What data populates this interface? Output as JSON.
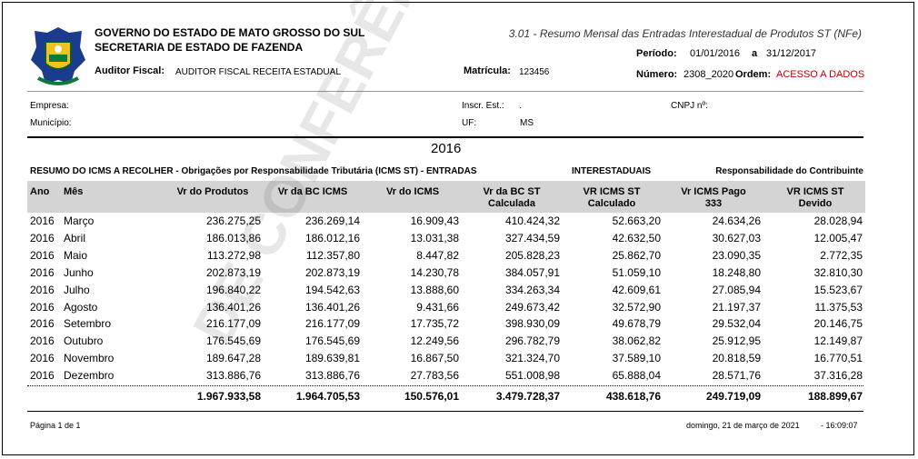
{
  "header": {
    "gov": "GOVERNO DO ESTADO DE MATO GROSSO DO SUL",
    "secretaria": "SECRETARIA DE ESTADO DE FAZENDA",
    "auditor_label": "Auditor Fiscal:",
    "auditor": "AUDITOR FISCAL RECEITA ESTADUAL",
    "matricula_label": "Matrícula:",
    "matricula": "123456",
    "report_title": "3.01 - Resumo Mensal das Entradas Interestadual de Produtos ST (NFe)",
    "periodo_label": "Período:",
    "periodo_start": "01/01/2016",
    "periodo_sep": "a",
    "periodo_end": "31/12/2017",
    "numero_label": "Número:",
    "numero": "2308_2020",
    "ordem_label": "Ordem:",
    "ordem": "ACESSO A DADOS"
  },
  "info": {
    "empresa_label": "Empresa:",
    "inscr_label": "Inscr. Est.:",
    "inscr": ".",
    "cnpj_label": "CNPJ nº:",
    "municipio_label": "Município:",
    "uf_label": "UF:",
    "uf": "MS"
  },
  "year": "2016",
  "summary": {
    "left": "RESUMO DO ICMS A RECOLHER - Obrigações por Responsabilidade Tributária (ICMS ST) - ENTRADAS",
    "middle": "INTERESTADUAIS",
    "right": "Responsabilidade do Contribuinte"
  },
  "table": {
    "columns": [
      [
        "Ano"
      ],
      [
        "Mês"
      ],
      [
        "Vr do Produtos"
      ],
      [
        "Vr da BC ICMS"
      ],
      [
        "Vr do ICMS"
      ],
      [
        "Vr da BC ST",
        "Calculada"
      ],
      [
        "VR ICMS ST",
        "Calculado"
      ],
      [
        "Vr ICMS Pago",
        "333"
      ],
      [
        "VR ICMS ST",
        "Devido"
      ]
    ],
    "rows": [
      {
        "year": "2016",
        "month": "Março",
        "values": [
          "236.275,25",
          "236.269,14",
          "16.909,43",
          "410.424,32",
          "52.663,20",
          "24.634,26",
          "28.028,94"
        ]
      },
      {
        "year": "2016",
        "month": "Abril",
        "values": [
          "186.013,86",
          "186.012,16",
          "13.031,38",
          "327.434,59",
          "42.632,50",
          "30.627,03",
          "12.005,47"
        ]
      },
      {
        "year": "2016",
        "month": "Maio",
        "values": [
          "113.272,98",
          "112.357,80",
          "8.447,82",
          "205.828,23",
          "25.862,70",
          "23.090,35",
          "2.772,35"
        ]
      },
      {
        "year": "2016",
        "month": "Junho",
        "values": [
          "202.873,19",
          "202.873,19",
          "14.230,78",
          "384.057,91",
          "51.059,10",
          "18.248,80",
          "32.810,30"
        ]
      },
      {
        "year": "2016",
        "month": "Julho",
        "values": [
          "196.840,22",
          "194.542,63",
          "13.888,60",
          "334.263,34",
          "42.609,61",
          "27.085,94",
          "15.523,67"
        ]
      },
      {
        "year": "2016",
        "month": "Agosto",
        "values": [
          "136.401,26",
          "136.401,26",
          "9.431,66",
          "249.673,42",
          "32.572,90",
          "21.197,37",
          "11.375,53"
        ]
      },
      {
        "year": "2016",
        "month": "Setembro",
        "values": [
          "216.177,09",
          "216.177,09",
          "17.735,72",
          "398.930,09",
          "49.678,79",
          "29.532,04",
          "20.146,75"
        ]
      },
      {
        "year": "2016",
        "month": "Outubro",
        "values": [
          "176.545,69",
          "176.545,69",
          "12.249,56",
          "296.782,79",
          "38.062,82",
          "25.912,95",
          "12.149,87"
        ]
      },
      {
        "year": "2016",
        "month": "Novembro",
        "values": [
          "189.647,28",
          "189.639,81",
          "16.867,50",
          "321.324,70",
          "37.589,10",
          "20.818,59",
          "16.770,51"
        ]
      },
      {
        "year": "2016",
        "month": "Dezembro",
        "values": [
          "313.886,76",
          "313.886,76",
          "27.783,56",
          "551.008,98",
          "65.888,04",
          "28.571,76",
          "37.316,28"
        ]
      }
    ],
    "totals": [
      "1.967.933,58",
      "1.964.705,53",
      "150.576,01",
      "3.479.728,37",
      "438.618,76",
      "249.719,09",
      "188.899,67"
    ]
  },
  "watermark": "DE CONFERÊNCIA",
  "footer": {
    "page": "Página 1 de 1",
    "date": "domingo, 21 de março de 2021",
    "time": "- 16:09:07"
  }
}
